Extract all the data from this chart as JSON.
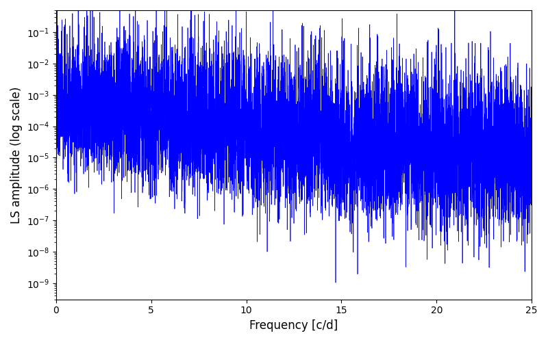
{
  "xlabel": "Frequency [c/d]",
  "ylabel": "LS amplitude (log scale)",
  "xlim": [
    0,
    25
  ],
  "ylim": [
    3e-10,
    0.5
  ],
  "line_color": "#0000ff",
  "line_width": 0.5,
  "figsize": [
    8.0,
    5.0
  ],
  "dpi": 100,
  "freq_max": 25.0,
  "n_points": 8000,
  "seed": 12345,
  "background_color": "#ffffff"
}
